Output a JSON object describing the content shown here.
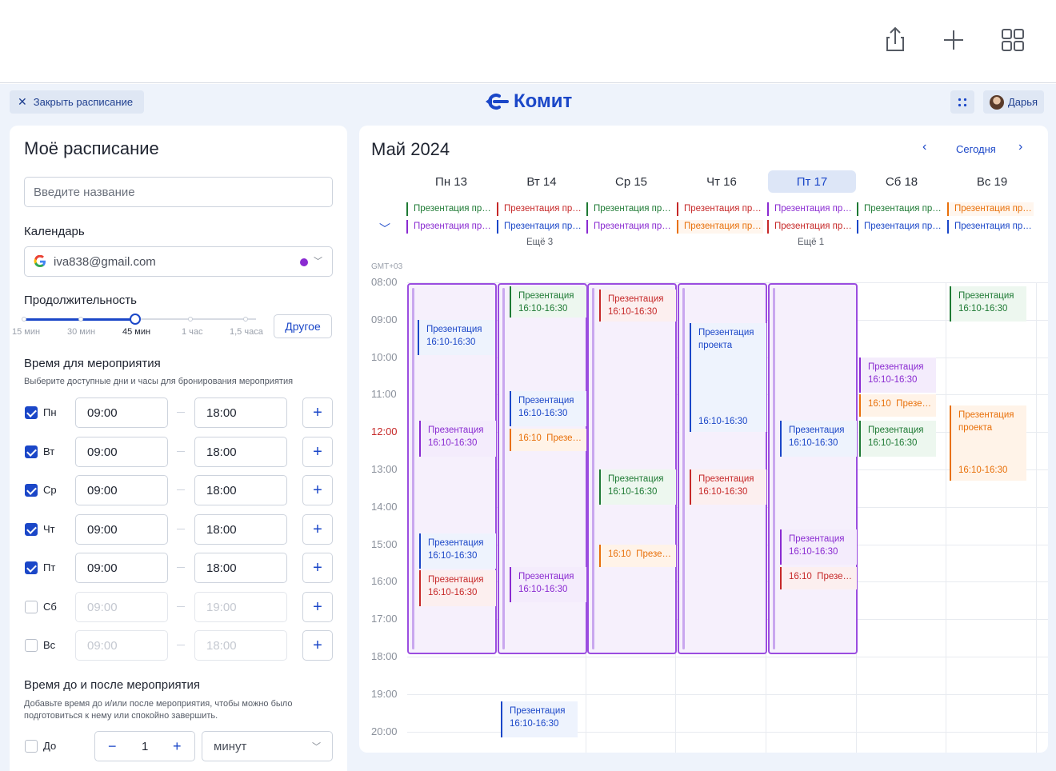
{
  "top_toolbar": {
    "share_icon": "share-icon",
    "add_icon": "plus-icon",
    "grid_icon": "grid-icon"
  },
  "header": {
    "close_label": "Закрыть расписание",
    "logo_text": "Комит",
    "user_name": "Дарья"
  },
  "form": {
    "title": "Моё расписание",
    "name_placeholder": "Введите название",
    "calendar_label": "Календарь",
    "calendar_value": "iva838@gmail.com",
    "duration_label": "Продолжительность",
    "duration_options": [
      "15 мин",
      "30 мин",
      "45 мин",
      "1 час",
      "1,5 часа"
    ],
    "duration_selected": "45 мин",
    "other_label": "Другое",
    "event_time_label": "Время для мероприятия",
    "event_time_hint": "Выберите доступные дни и часы для бронирования мероприятия",
    "days": [
      {
        "day": "Пн",
        "checked": true,
        "from": "09:00",
        "to": "18:00"
      },
      {
        "day": "Вт",
        "checked": true,
        "from": "09:00",
        "to": "18:00"
      },
      {
        "day": "Ср",
        "checked": true,
        "from": "09:00",
        "to": "18:00"
      },
      {
        "day": "Чт",
        "checked": true,
        "from": "09:00",
        "to": "18:00"
      },
      {
        "day": "Пт",
        "checked": true,
        "from": "09:00",
        "to": "18:00"
      },
      {
        "day": "Сб",
        "checked": false,
        "from": "09:00",
        "to": "19:00"
      },
      {
        "day": "Вс",
        "checked": false,
        "from": "09:00",
        "to": "18:00"
      }
    ],
    "buffer_label": "Время до и после мероприятия",
    "buffer_hint": "Добавьте время до и/или после мероприятия, чтобы можно было подготовиться к нему или спокойно завершить.",
    "before_label": "До",
    "before_value": "1",
    "before_unit": "минут"
  },
  "calendar": {
    "month": "Май 2024",
    "today_label": "Сегодня",
    "gmt": "GMT+03",
    "day_heads": [
      "Пн 13",
      "Вт 14",
      "Ср 15",
      "Чт 16",
      "Пт 17",
      "Сб 18",
      "Вс 19"
    ],
    "hours": [
      "08:00",
      "09:00",
      "10:00",
      "11:00",
      "12:00",
      "13:00",
      "14:00",
      "15:00",
      "16:00",
      "17:00",
      "18:00",
      "19:00",
      "20:00"
    ],
    "more_labels": [
      "Ещё 3",
      "Ещё 1"
    ],
    "allday_text": "Презентация проекта",
    "event_title": "Презентация",
    "event_title_full": "Презентация проекта",
    "event_time": "16:10-16:30",
    "event_time_short": "16:10",
    "colors": {
      "blue": "#1b47c8",
      "green": "#1e7a34",
      "purple": "#8a2bd1",
      "red": "#c62828",
      "orange": "#e8700a"
    }
  }
}
